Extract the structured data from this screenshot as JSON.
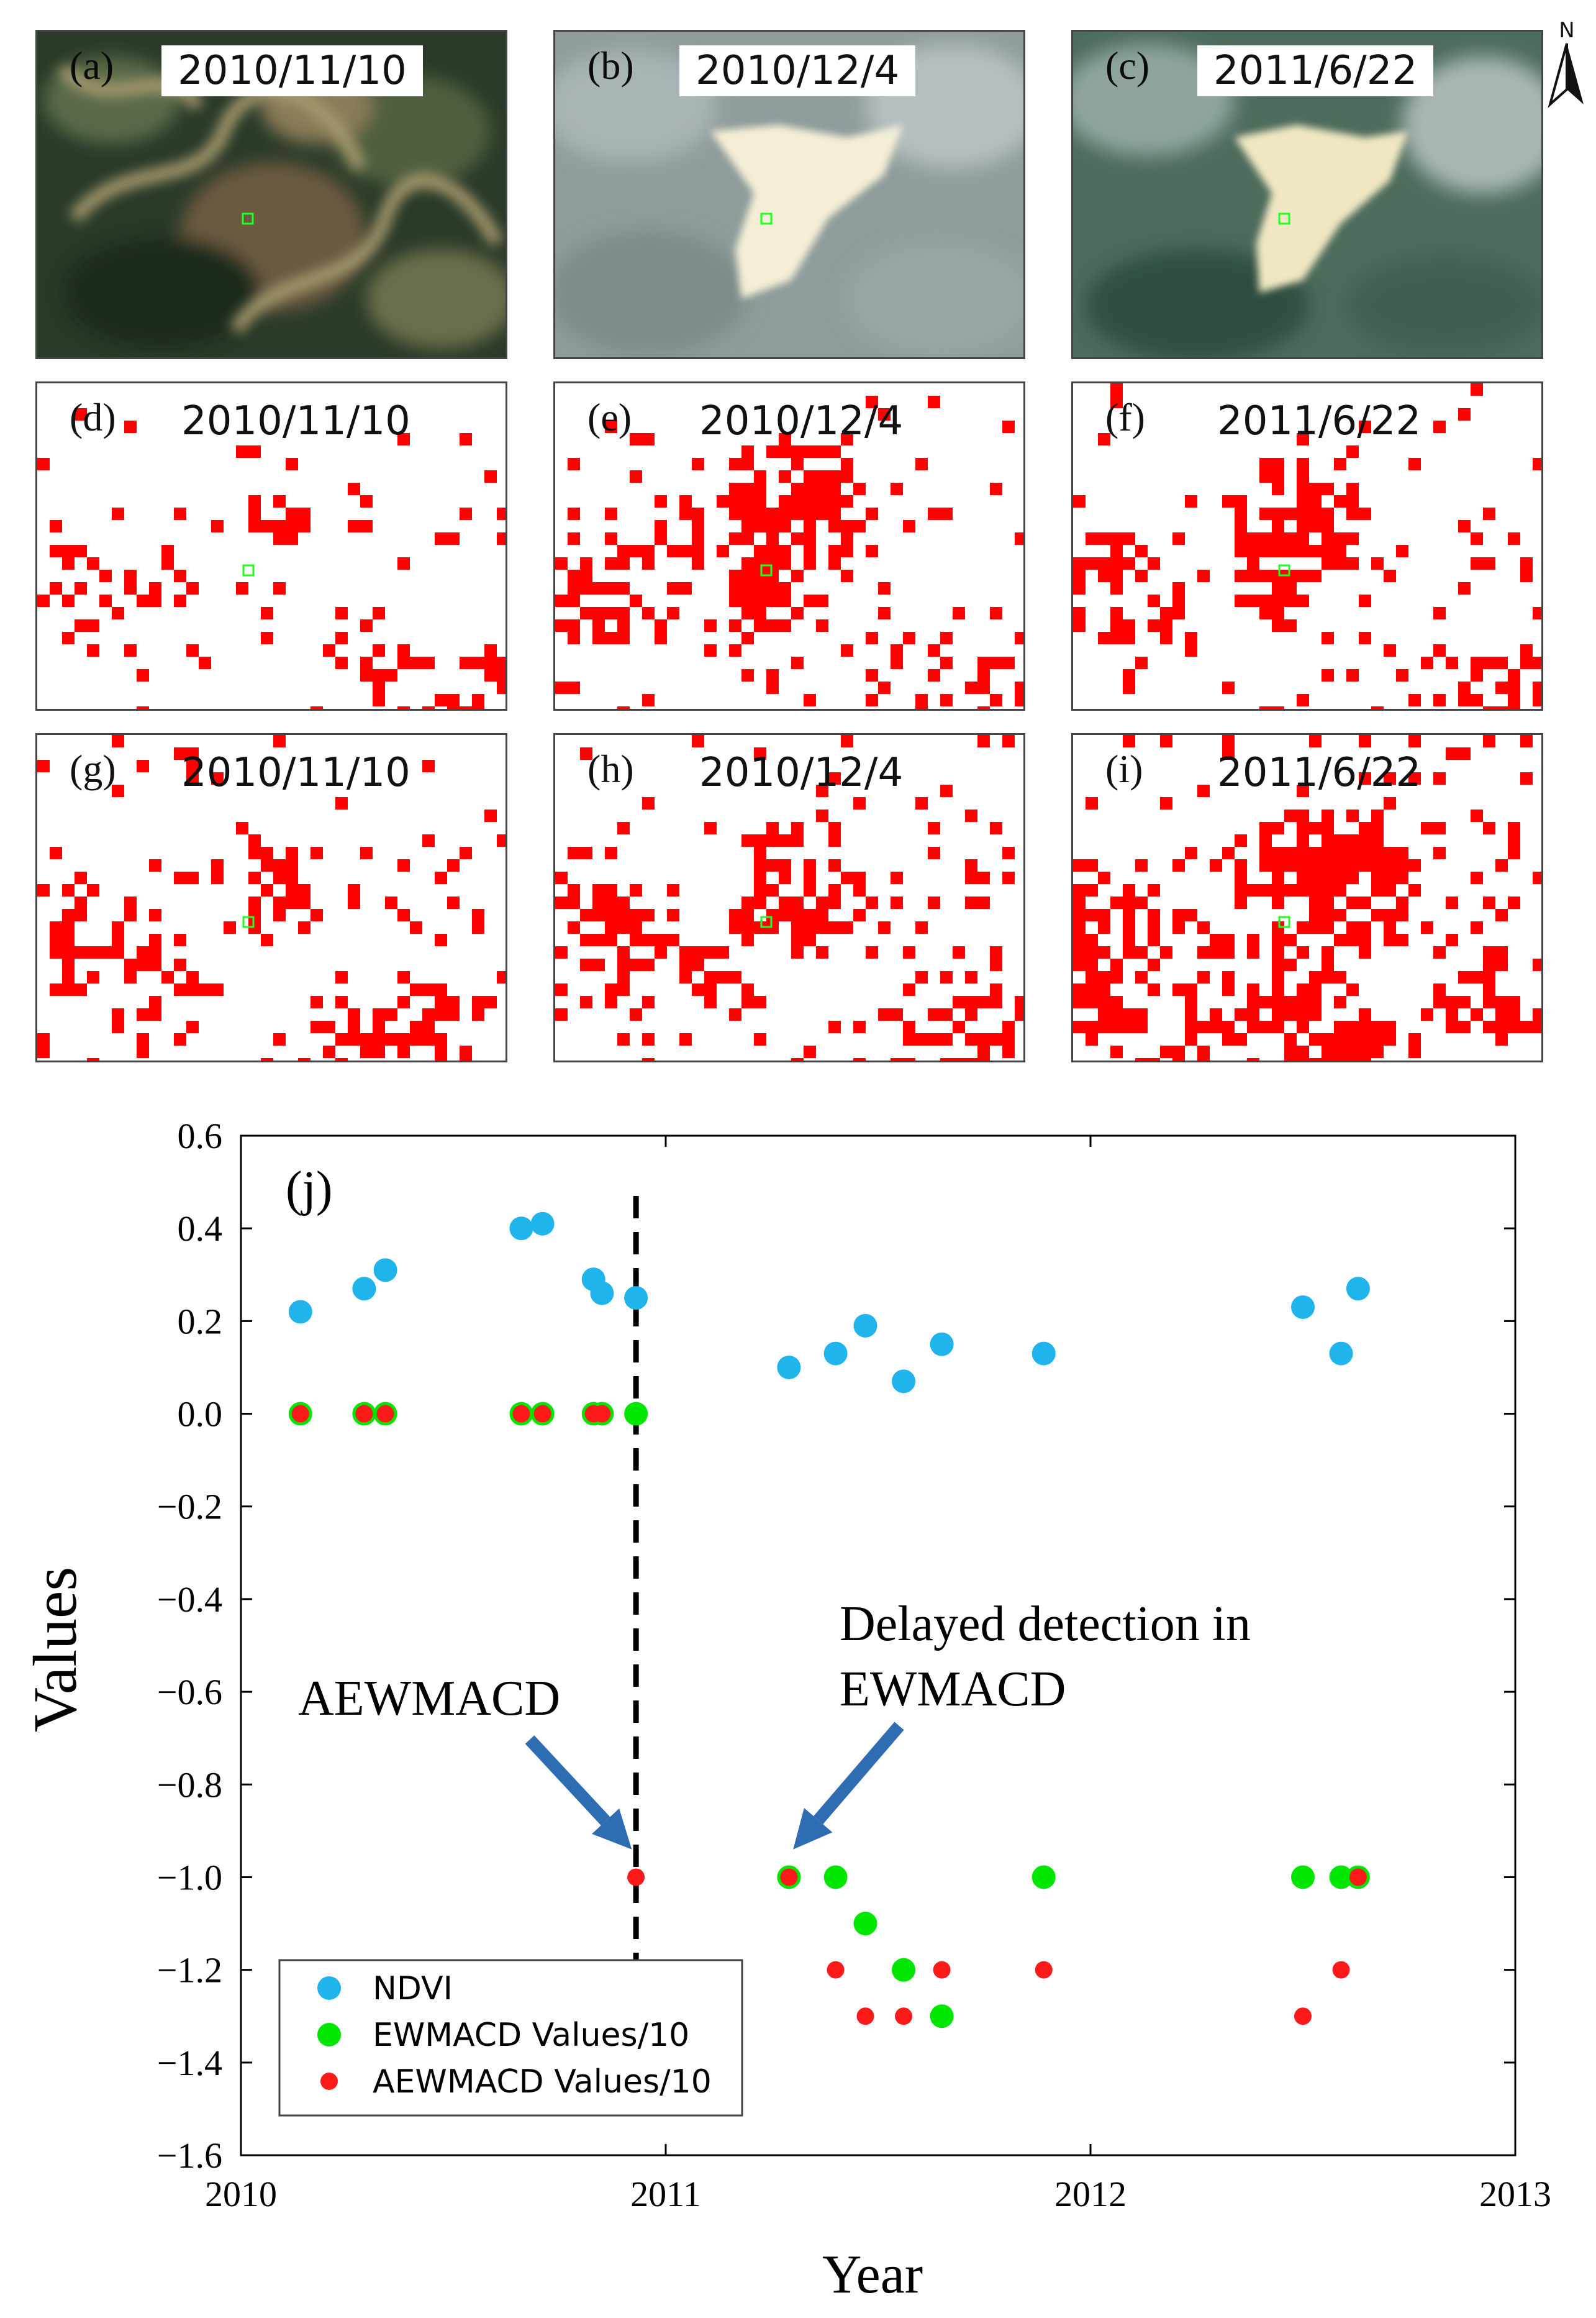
{
  "panels": [
    {
      "id": "a",
      "label": "(a)",
      "date": "2010/11/10",
      "kind": "satellite",
      "scene": "forest"
    },
    {
      "id": "b",
      "label": "(b)",
      "date": "2010/12/4",
      "kind": "satellite",
      "scene": "cleared"
    },
    {
      "id": "c",
      "label": "(c)",
      "date": "2011/6/22",
      "kind": "satellite",
      "scene": "regrowth"
    },
    {
      "id": "d",
      "label": "(d)",
      "date": "2010/11/10",
      "kind": "change-map"
    },
    {
      "id": "e",
      "label": "(e)",
      "date": "2010/12/4",
      "kind": "change-map"
    },
    {
      "id": "f",
      "label": "(f)",
      "date": "2011/6/22",
      "kind": "change-map"
    },
    {
      "id": "g",
      "label": "(g)",
      "date": "2010/11/10",
      "kind": "change-map"
    },
    {
      "id": "h",
      "label": "(h)",
      "date": "2010/12/4",
      "kind": "change-map"
    },
    {
      "id": "i",
      "label": "(i)",
      "date": "2011/6/22",
      "kind": "change-map"
    }
  ],
  "north_label": "N",
  "colors": {
    "ndvi": "#1fb4ec",
    "ewmacd": "#00e600",
    "aewmacd": "#ff1a1a",
    "change": "#ff0000",
    "arrow": "#2f6db3"
  },
  "chart_data": {
    "type": "scatter",
    "panel_label": "(j)",
    "xlabel": "Year",
    "ylabel": "Values",
    "xlim": [
      2010,
      2013
    ],
    "ylim": [
      -1.6,
      0.6
    ],
    "xticks": [
      2010,
      2011,
      2012,
      2013
    ],
    "yticks": [
      "0.6",
      "0.4",
      "0.2",
      "0.0",
      "−0.2",
      "−0.4",
      "−0.6",
      "−0.8",
      "−1.0",
      "−1.2",
      "−1.4",
      "−1.6"
    ],
    "ytick_values": [
      0.6,
      0.4,
      0.2,
      0.0,
      -0.2,
      -0.4,
      -0.6,
      -0.8,
      -1.0,
      -1.2,
      -1.4,
      -1.6
    ],
    "vline_x": 2010.93,
    "series": [
      {
        "name": "NDVI",
        "color": "#1fb4ec",
        "size": "large",
        "points": [
          [
            2010.14,
            0.22
          ],
          [
            2010.29,
            0.27
          ],
          [
            2010.34,
            0.31
          ],
          [
            2010.66,
            0.4
          ],
          [
            2010.71,
            0.41
          ],
          [
            2010.83,
            0.29
          ],
          [
            2010.85,
            0.26
          ],
          [
            2010.93,
            0.25
          ],
          [
            2011.29,
            0.1
          ],
          [
            2011.4,
            0.13
          ],
          [
            2011.47,
            0.19
          ],
          [
            2011.56,
            0.07
          ],
          [
            2011.65,
            0.15
          ],
          [
            2011.89,
            0.13
          ],
          [
            2012.5,
            0.23
          ],
          [
            2012.59,
            0.13
          ],
          [
            2012.63,
            0.27
          ]
        ]
      },
      {
        "name": "EWMACD Values/10",
        "color": "#00e600",
        "size": "large",
        "points": [
          [
            2010.14,
            0.0
          ],
          [
            2010.29,
            0.0
          ],
          [
            2010.34,
            0.0
          ],
          [
            2010.66,
            0.0
          ],
          [
            2010.71,
            0.0
          ],
          [
            2010.83,
            0.0
          ],
          [
            2010.85,
            0.0
          ],
          [
            2010.93,
            0.0
          ],
          [
            2011.29,
            -1.0
          ],
          [
            2011.4,
            -1.0
          ],
          [
            2011.47,
            -1.1
          ],
          [
            2011.56,
            -1.2
          ],
          [
            2011.65,
            -1.3
          ],
          [
            2011.89,
            -1.0
          ],
          [
            2012.5,
            -1.0
          ],
          [
            2012.59,
            -1.0
          ],
          [
            2012.63,
            -1.0
          ]
        ]
      },
      {
        "name": "AEWMACD Values/10",
        "color": "#ff1a1a",
        "size": "small",
        "points": [
          [
            2010.14,
            0.0
          ],
          [
            2010.29,
            0.0
          ],
          [
            2010.34,
            0.0
          ],
          [
            2010.66,
            0.0
          ],
          [
            2010.71,
            0.0
          ],
          [
            2010.83,
            0.0
          ],
          [
            2010.85,
            0.0
          ],
          [
            2010.93,
            -1.0
          ],
          [
            2011.29,
            -1.0
          ],
          [
            2011.4,
            -1.2
          ],
          [
            2011.47,
            -1.3
          ],
          [
            2011.56,
            -1.3
          ],
          [
            2011.65,
            -1.2
          ],
          [
            2011.89,
            -1.2
          ],
          [
            2012.5,
            -1.3
          ],
          [
            2012.59,
            -1.2
          ],
          [
            2012.63,
            -1.0
          ]
        ]
      }
    ],
    "annotations": [
      {
        "text": "AEWMACD",
        "target": [
          2010.92,
          -0.94
        ]
      },
      {
        "text": "Delayed detection in",
        "line2": "EWMACD",
        "target": [
          2011.3,
          -0.94
        ]
      }
    ],
    "legend": {
      "location": "lower-left",
      "entries": [
        "NDVI",
        "EWMACD Values/10",
        "AEWMACD Values/10"
      ]
    }
  }
}
